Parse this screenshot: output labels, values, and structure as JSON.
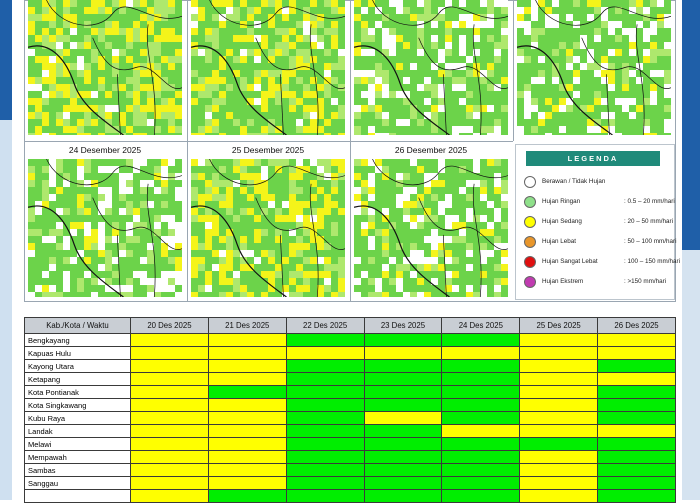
{
  "maps": {
    "panels": [
      {
        "title": "",
        "level": "sedang"
      },
      {
        "title": "",
        "level": "sedang"
      },
      {
        "title": "",
        "level": "ringan"
      },
      {
        "title": "",
        "level": "ringan"
      },
      {
        "title": "24 Desember 2025",
        "level": "ringan"
      },
      {
        "title": "25 Desember 2025",
        "level": "sedang"
      },
      {
        "title": "26 Desember 2025",
        "level": "ringan"
      }
    ]
  },
  "legend": {
    "title": "LEGENDA",
    "items": [
      {
        "label": "Berawan / Tidak Hujan",
        "range": "",
        "color": "#ffffff"
      },
      {
        "label": "Hujan Ringan",
        "range": ": 0.5 – 20 mm/hari",
        "color": "#8fe08a"
      },
      {
        "label": "Hujan Sedang",
        "range": ": 20 – 50 mm/hari",
        "color": "#ffff00"
      },
      {
        "label": "Hujan Lebat",
        "range": ": 50 – 100 mm/hari",
        "color": "#e8962b"
      },
      {
        "label": "Hujan Sangat Lebat",
        "range": ": 100 – 150 mm/hari",
        "color": "#e01010"
      },
      {
        "label": "Hujan Ekstrem",
        "range": ": >150 mm/hari",
        "color": "#c03bb0"
      }
    ]
  },
  "table": {
    "headers": [
      "Kab./Kota / Waktu",
      "20 Des 2025",
      "21 Des 2025",
      "22 Des 2025",
      "23 Des 2025",
      "24 Des 2025",
      "25 Des 2025",
      "26 Des 2025"
    ],
    "rows": [
      {
        "name": "Bengkayang",
        "cells": [
          "y",
          "y",
          "g",
          "g",
          "g",
          "y",
          "y"
        ]
      },
      {
        "name": "Kapuas Hulu",
        "cells": [
          "y",
          "y",
          "y",
          "y",
          "y",
          "y",
          "y"
        ]
      },
      {
        "name": "Kayong Utara",
        "cells": [
          "y",
          "y",
          "g",
          "g",
          "g",
          "y",
          "g"
        ]
      },
      {
        "name": "Ketapang",
        "cells": [
          "y",
          "y",
          "g",
          "g",
          "g",
          "y",
          "y"
        ]
      },
      {
        "name": "Kota Pontianak",
        "cells": [
          "y",
          "g",
          "g",
          "g",
          "g",
          "y",
          "g"
        ]
      },
      {
        "name": "Kota Singkawang",
        "cells": [
          "y",
          "y",
          "g",
          "g",
          "g",
          "y",
          "g"
        ]
      },
      {
        "name": "Kubu Raya",
        "cells": [
          "y",
          "y",
          "g",
          "y",
          "g",
          "y",
          "g"
        ]
      },
      {
        "name": "Landak",
        "cells": [
          "y",
          "y",
          "g",
          "g",
          "y",
          "y",
          "y"
        ]
      },
      {
        "name": "Melawi",
        "cells": [
          "y",
          "y",
          "g",
          "g",
          "g",
          "g",
          "g"
        ]
      },
      {
        "name": "Mempawah",
        "cells": [
          "y",
          "y",
          "g",
          "g",
          "g",
          "y",
          "g"
        ]
      },
      {
        "name": "Sambas",
        "cells": [
          "y",
          "y",
          "g",
          "g",
          "g",
          "y",
          "g"
        ]
      },
      {
        "name": "Sanggau",
        "cells": [
          "y",
          "y",
          "g",
          "g",
          "g",
          "y",
          "g"
        ]
      },
      {
        "name": "",
        "cells": [
          "y",
          "g",
          "g",
          "g",
          "g",
          "y",
          "g"
        ]
      }
    ]
  }
}
